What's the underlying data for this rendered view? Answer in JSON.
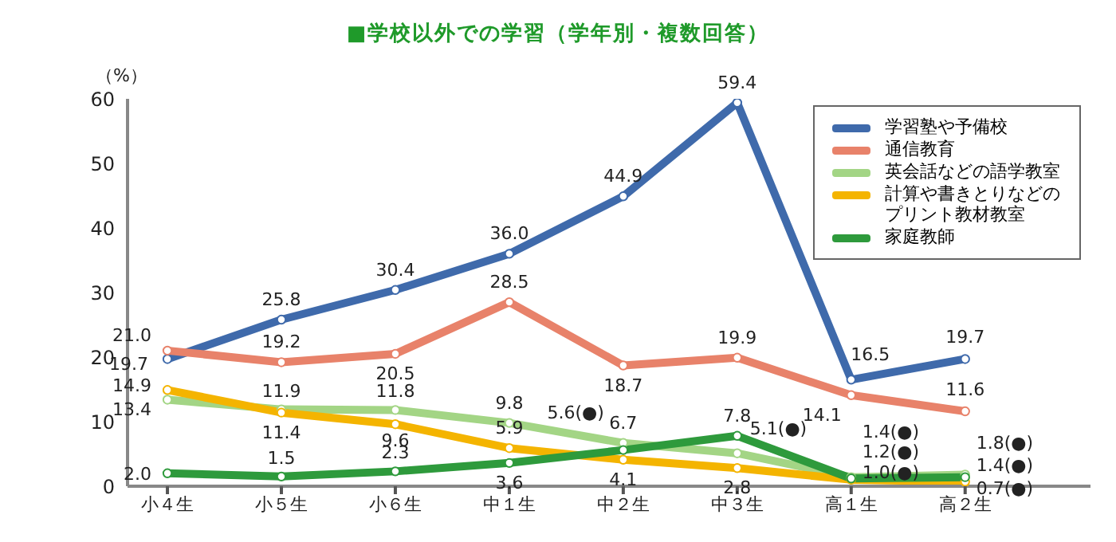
{
  "chart_data": {
    "type": "line",
    "title": "■学校以外での学習（学年別・複数回答）",
    "ylabel": "（%）",
    "categories": [
      "小４生",
      "小５生",
      "小６生",
      "中１生",
      "中２生",
      "中３生",
      "高１生",
      "高２生"
    ],
    "series": [
      {
        "name": "学習塾や予備校",
        "color": "#3f6aab",
        "values": [
          19.7,
          25.8,
          30.4,
          36.0,
          44.9,
          59.4,
          16.5,
          19.7
        ],
        "value_labels": [
          "19.7",
          "25.8",
          "30.4",
          "36.0",
          "44.9",
          "59.4",
          "16.5",
          "19.7"
        ]
      },
      {
        "name": "通信教育",
        "color": "#e8826a",
        "values": [
          21.0,
          19.2,
          20.5,
          28.5,
          18.7,
          19.9,
          14.1,
          11.6
        ],
        "value_labels": [
          "21.0",
          "19.2",
          "20.5",
          "28.5",
          "18.7",
          "19.9",
          "14.1",
          "11.6"
        ]
      },
      {
        "name": "英会話などの語学教室",
        "color": "#a3d585",
        "values": [
          13.4,
          11.9,
          11.8,
          9.8,
          6.7,
          5.1,
          1.4,
          1.8
        ],
        "value_labels": [
          "13.4",
          "11.9",
          "11.8",
          "9.8",
          "6.7",
          "5.1(●)",
          "1.4(●)",
          "1.8(●)"
        ]
      },
      {
        "name": "計算や書きとりなどのプリント教材教室",
        "color": "#f4b400",
        "values": [
          14.9,
          11.4,
          9.6,
          5.9,
          4.1,
          2.8,
          1.0,
          0.7
        ],
        "value_labels": [
          "14.9",
          "11.4",
          "9.6",
          "5.9",
          "4.1",
          "2.8",
          "1.0(●)",
          "0.7(●)"
        ]
      },
      {
        "name": "家庭教師",
        "color": "#2e9a3c",
        "values": [
          2.0,
          1.5,
          2.3,
          3.6,
          5.6,
          7.8,
          1.2,
          1.4
        ],
        "value_labels": [
          "2.0",
          "1.5",
          "2.3",
          "3.6",
          "5.6(●)",
          "7.8",
          "1.2(●)",
          "1.4(●)"
        ]
      }
    ],
    "ylim": [
      0,
      60
    ],
    "yticks": [
      0,
      10,
      20,
      30,
      40,
      50,
      60
    ],
    "grid": false,
    "legend": "top right",
    "marker": "circle",
    "line_style": "solid"
  }
}
